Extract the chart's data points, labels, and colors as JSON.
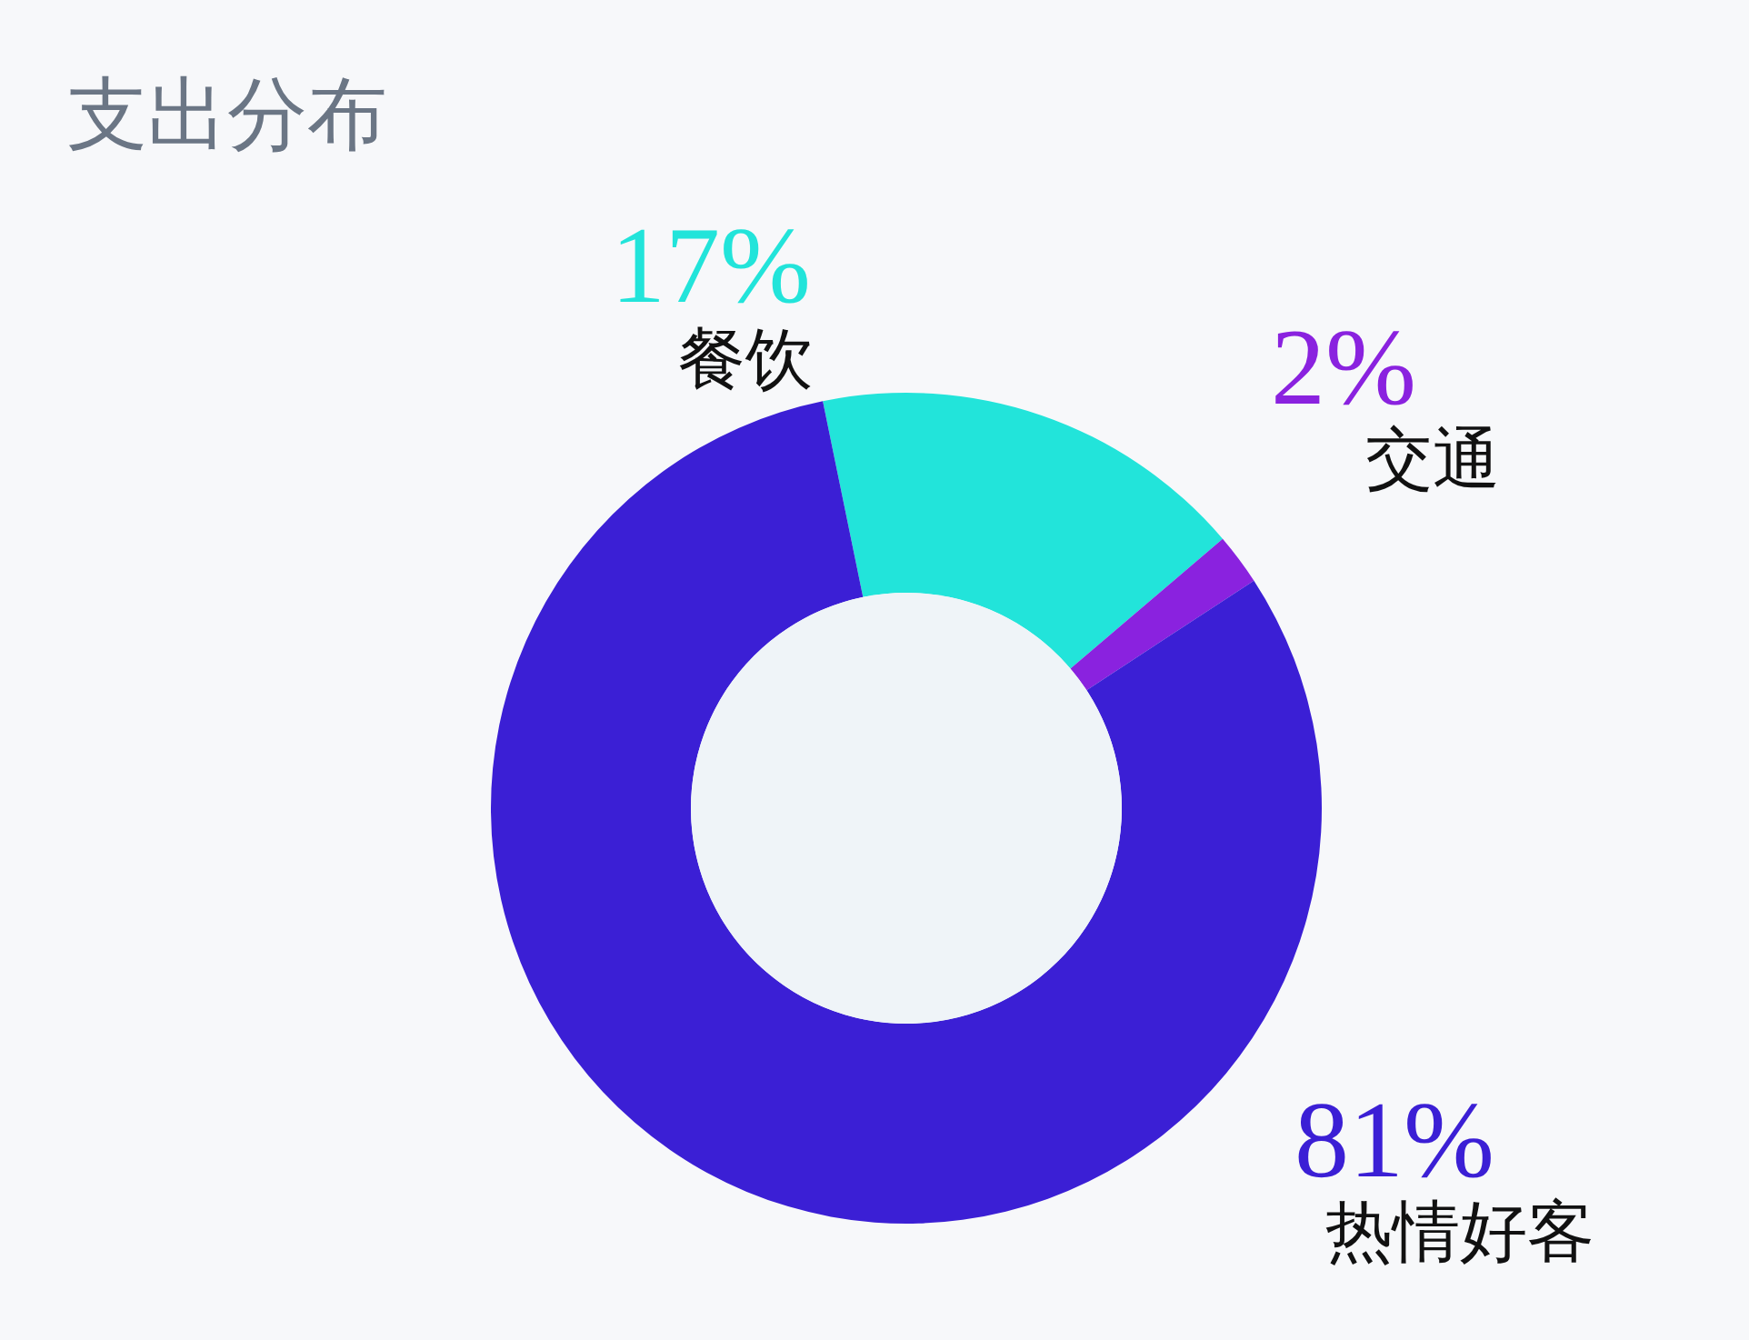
{
  "chart_data": {
    "type": "donut",
    "title": "支出分布",
    "categories": [
      "餐饮",
      "交通",
      "热情好客"
    ],
    "values": [
      17,
      2,
      81
    ],
    "colors": [
      "#22e4da",
      "#8a22df",
      "#3b1fd5"
    ],
    "value_labels": [
      "17%",
      "2%",
      "81%"
    ],
    "legend": false
  }
}
